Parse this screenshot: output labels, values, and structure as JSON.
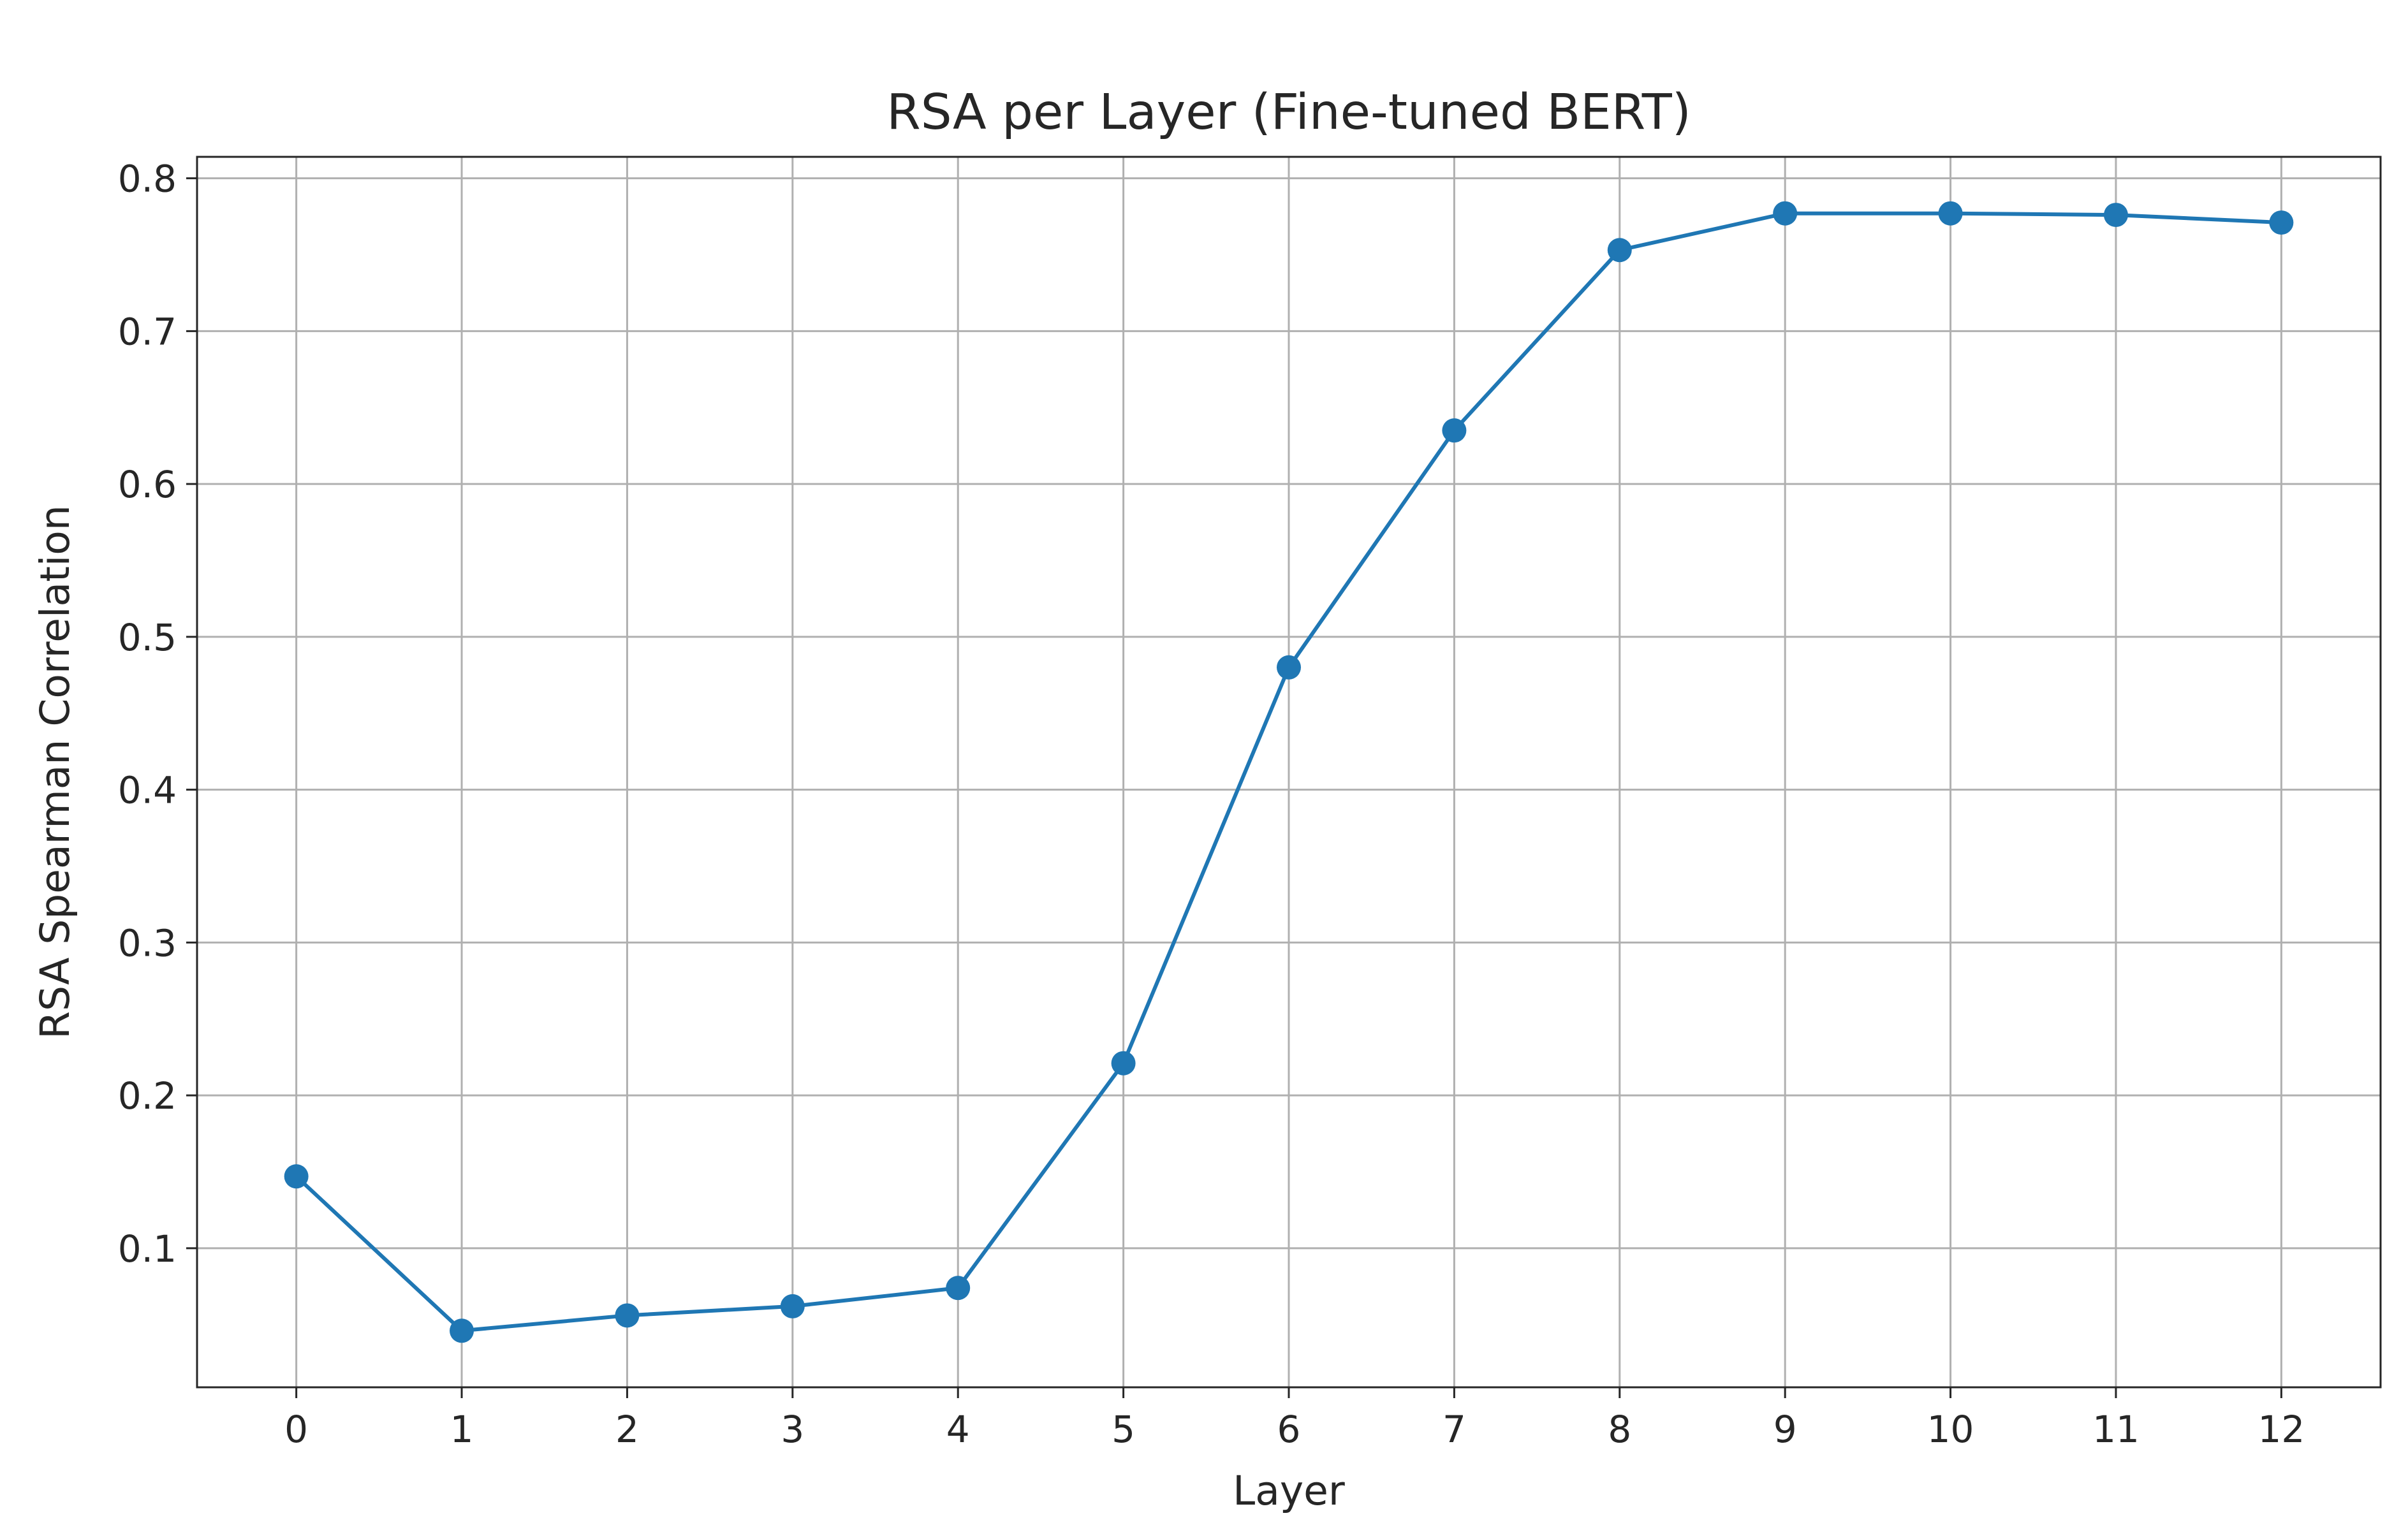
{
  "chart_data": {
    "type": "line",
    "title": "RSA per Layer (Fine-tuned BERT)",
    "xlabel": "Layer",
    "ylabel": "RSA Spearman Correlation",
    "x": [
      0,
      1,
      2,
      3,
      4,
      5,
      6,
      7,
      8,
      9,
      10,
      11,
      12
    ],
    "x_tick_labels": [
      "0",
      "1",
      "2",
      "3",
      "4",
      "5",
      "6",
      "7",
      "8",
      "9",
      "10",
      "11",
      "12"
    ],
    "y_ticks": [
      0.1,
      0.2,
      0.3,
      0.4,
      0.5,
      0.6,
      0.7,
      0.8
    ],
    "y_tick_labels": [
      "0.1",
      "0.2",
      "0.3",
      "0.4",
      "0.5",
      "0.6",
      "0.7",
      "0.8"
    ],
    "xlim": [
      -0.6,
      12.6
    ],
    "ylim": [
      0.009,
      0.814
    ],
    "grid": true,
    "legend": false,
    "series": [
      {
        "color": "#1f77b4",
        "marker": "circle",
        "values": [
          0.147,
          0.046,
          0.056,
          0.062,
          0.074,
          0.221,
          0.48,
          0.635,
          0.753,
          0.777,
          0.777,
          0.776,
          0.771
        ]
      }
    ]
  }
}
